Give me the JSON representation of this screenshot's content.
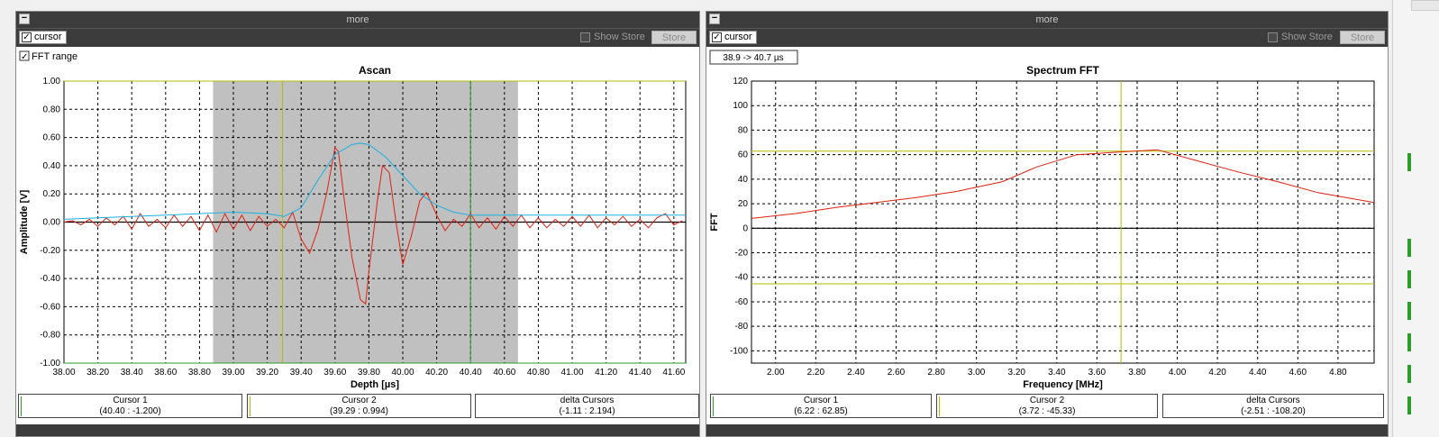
{
  "left": {
    "header": "more",
    "cursor_label": "cursor",
    "show_store_label": "Show Store",
    "store_label": "Store",
    "fft_range_label": "FFT range",
    "chart_title": "Ascan",
    "x_label": "Depth [µs]",
    "y_label": "Amplitude [V]",
    "readouts": [
      {
        "title": "Cursor 1",
        "value": "(40.40 : -1.200)",
        "color": "#2a9d2a"
      },
      {
        "title": "Cursor 2",
        "value": "(39.29 : 0.994)",
        "color": "#b8b800"
      },
      {
        "title": "delta Cursors",
        "value": "(-1.11 : 2.194)",
        "color": ""
      }
    ]
  },
  "right": {
    "header": "more",
    "cursor_label": "cursor",
    "show_store_label": "Show Store",
    "store_label": "Store",
    "range_label": "38.9 -> 40.7 µs",
    "chart_title": "Spectrum FFT",
    "x_label": "Frequency [MHz]",
    "y_label": "FFT",
    "readouts": [
      {
        "title": "Cursor 1",
        "value": "(6.22 : 62.85)",
        "color": "#2a9d2a"
      },
      {
        "title": "Cursor 2",
        "value": "(3.72 : -45.33)",
        "color": "#b8b800"
      },
      {
        "title": "delta Cursors",
        "value": "(-2.51 : -108.20)",
        "color": ""
      }
    ]
  },
  "colors": {
    "signal": "#e02010",
    "envelope": "#1ab0e0",
    "fft_range": "#c0c0c0",
    "cursor1": "#2a9d2a",
    "cursor2": "#b8b800"
  },
  "chart_data": [
    {
      "type": "line",
      "title": "Ascan",
      "xlabel": "Depth [µs]",
      "ylabel": "Amplitude [V]",
      "xlim": [
        38.0,
        41.67
      ],
      "ylim": [
        -1.0,
        1.0
      ],
      "x_ticks": [
        "38.00",
        "38.20",
        "38.40",
        "38.60",
        "38.80",
        "39.00",
        "39.20",
        "39.40",
        "39.60",
        "39.80",
        "40.00",
        "40.20",
        "40.40",
        "40.60",
        "40.80",
        "41.00",
        "41.20",
        "41.40",
        "41.60"
      ],
      "y_ticks": [
        "1.00",
        "0.80",
        "0.60",
        "0.40",
        "0.20",
        "0.00",
        "-0.20",
        "-0.40",
        "-0.60",
        "-0.80",
        "-1.00"
      ],
      "grid": true,
      "fft_range": [
        38.88,
        40.68
      ],
      "cursors": {
        "cursor1_x": 40.4,
        "cursor2_x": 39.29,
        "cursor1_y": -1.2,
        "cursor2_y": 0.994
      },
      "series": [
        {
          "name": "signal",
          "x": [
            38.0,
            38.05,
            38.1,
            38.15,
            38.2,
            38.25,
            38.3,
            38.35,
            38.4,
            38.45,
            38.5,
            38.55,
            38.6,
            38.65,
            38.7,
            38.75,
            38.8,
            38.85,
            38.9,
            38.95,
            39.0,
            39.05,
            39.1,
            39.15,
            39.2,
            39.25,
            39.3,
            39.35,
            39.4,
            39.45,
            39.5,
            39.55,
            39.6,
            39.62,
            39.65,
            39.7,
            39.75,
            39.78,
            39.8,
            39.85,
            39.88,
            39.92,
            39.96,
            40.0,
            40.05,
            40.1,
            40.14,
            40.2,
            40.25,
            40.3,
            40.35,
            40.4,
            40.45,
            40.5,
            40.55,
            40.6,
            40.65,
            40.7,
            40.75,
            40.8,
            40.85,
            40.9,
            40.95,
            41.0,
            41.05,
            41.1,
            41.15,
            41.2,
            41.25,
            41.3,
            41.35,
            41.4,
            41.45,
            41.5,
            41.55,
            41.6,
            41.65
          ],
          "y": [
            0.0,
            0.01,
            -0.02,
            0.02,
            -0.03,
            0.03,
            -0.02,
            0.04,
            -0.05,
            0.06,
            -0.03,
            0.02,
            -0.04,
            0.05,
            -0.03,
            0.04,
            -0.06,
            0.05,
            -0.07,
            0.06,
            -0.05,
            0.05,
            -0.06,
            0.04,
            -0.03,
            0.02,
            -0.04,
            0.07,
            -0.12,
            -0.22,
            -0.05,
            0.2,
            0.53,
            0.5,
            0.2,
            -0.25,
            -0.55,
            -0.58,
            -0.35,
            0.15,
            0.4,
            0.35,
            0.0,
            -0.3,
            -0.1,
            0.15,
            0.21,
            0.05,
            -0.06,
            0.02,
            -0.03,
            0.06,
            -0.04,
            0.03,
            -0.05,
            0.04,
            -0.03,
            0.05,
            -0.04,
            0.03,
            -0.04,
            0.02,
            -0.03,
            0.04,
            -0.03,
            0.05,
            -0.04,
            0.03,
            -0.02,
            0.04,
            -0.03,
            0.02,
            -0.04,
            0.03,
            0.06,
            -0.02,
            0.01
          ]
        },
        {
          "name": "envelope",
          "x": [
            38.0,
            38.2,
            38.4,
            38.6,
            38.8,
            39.0,
            39.2,
            39.3,
            39.4,
            39.5,
            39.6,
            39.7,
            39.75,
            39.8,
            39.9,
            40.0,
            40.1,
            40.2,
            40.3,
            40.4,
            40.6,
            40.8,
            41.0,
            41.2,
            41.4,
            41.6,
            41.67
          ],
          "y": [
            0.02,
            0.03,
            0.04,
            0.05,
            0.06,
            0.07,
            0.06,
            0.04,
            0.1,
            0.3,
            0.48,
            0.55,
            0.56,
            0.55,
            0.46,
            0.33,
            0.2,
            0.12,
            0.07,
            0.05,
            0.05,
            0.05,
            0.05,
            0.05,
            0.05,
            0.05,
            0.05
          ]
        }
      ]
    },
    {
      "type": "line",
      "title": "Spectrum FFT",
      "xlabel": "Frequency [MHz]",
      "ylabel": "FFT",
      "xlim": [
        1.88,
        4.98
      ],
      "ylim": [
        -110,
        120
      ],
      "x_ticks": [
        "2.00",
        "2.20",
        "2.40",
        "2.60",
        "2.80",
        "3.00",
        "3.20",
        "3.40",
        "3.60",
        "3.80",
        "4.00",
        "4.20",
        "4.40",
        "4.60",
        "4.80"
      ],
      "y_ticks": [
        "120",
        "100",
        "80",
        "60",
        "40",
        "20",
        "0",
        "-20",
        "-40",
        "-60",
        "-80",
        "-100"
      ],
      "grid": true,
      "cursors": {
        "cursor1_y": 62.85,
        "cursor2_y": -45.33,
        "cursor2_x": 3.72
      },
      "series": [
        {
          "name": "spectrum",
          "x": [
            1.88,
            2.1,
            2.3,
            2.5,
            2.7,
            2.9,
            3.13,
            3.3,
            3.5,
            3.7,
            3.9,
            4.1,
            4.3,
            4.5,
            4.7,
            4.98
          ],
          "y": [
            8,
            12,
            17,
            21,
            25,
            30,
            38,
            50,
            60,
            62,
            64,
            55,
            46,
            38,
            29,
            21
          ]
        }
      ]
    }
  ]
}
